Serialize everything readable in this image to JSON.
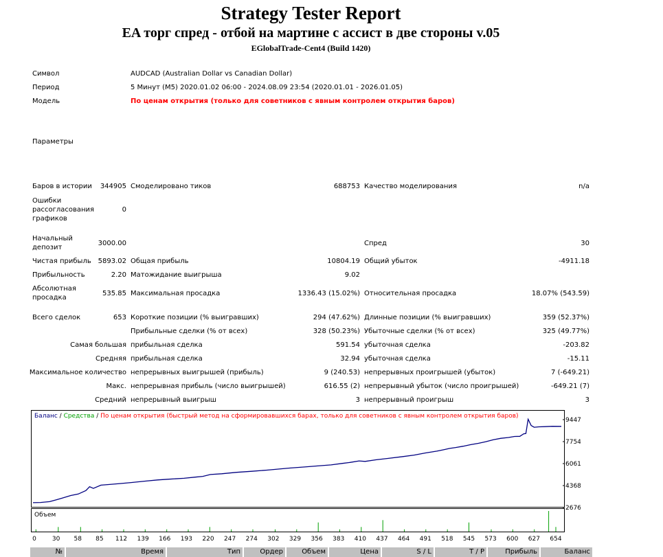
{
  "title": "Strategy Tester Report",
  "subtitle": "EA торг спред - отбой на мартине с ассист в две стороны v.05",
  "server": "EGlobalTrade-Cent4 (Build 1420)",
  "info": {
    "symbol_label": "Символ",
    "symbol_value": "AUDCAD (Australian Dollar vs Canadian Dollar)",
    "period_label": "Период",
    "period_value": "5 Минут (M5) 2020.01.02 06:00 - 2024.08.09 23:54 (2020.01.01 - 2026.01.05)",
    "model_label": "Модель",
    "model_value": "По ценам открытия (только для советников с явным контролем открытия баров)",
    "params_label": "Параметры"
  },
  "stats": {
    "bars_label": "Баров в истории",
    "bars_value": "344905",
    "ticks_label": "Смоделировано тиков",
    "ticks_value": "688753",
    "quality_label": "Качество моделирования",
    "quality_value": "n/a",
    "errors_label": "Ошибки рассогласования графиков",
    "errors_value": "0",
    "deposit_label": "Начальный депозит",
    "deposit_value": "3000.00",
    "spread_label": "Спред",
    "spread_value": "30",
    "net_label": "Чистая прибыль",
    "net_value": "5893.02",
    "gross_profit_label": "Общая прибыль",
    "gross_profit_value": "10804.19",
    "gross_loss_label": "Общий убыток",
    "gross_loss_value": "-4911.18",
    "pf_label": "Прибыльность",
    "pf_value": "2.20",
    "expected_label": "Матожидание выигрыша",
    "expected_value": "9.02",
    "abs_dd_label": "Абсолютная просадка",
    "abs_dd_value": "535.85",
    "max_dd_label": "Максимальная просадка",
    "max_dd_value": "1336.43 (15.02%)",
    "rel_dd_label": "Относительная просадка",
    "rel_dd_value": "18.07% (543.59)",
    "total_label": "Всего сделок",
    "total_value": "653",
    "short_label": "Короткие позиции (% выигравших)",
    "short_value": "294 (47.62%)",
    "long_label": "Длинные позиции (% выигравших)",
    "long_value": "359 (52.37%)",
    "profit_trades_label": "Прибыльные сделки (% от всех)",
    "profit_trades_value": "328 (50.23%)",
    "loss_trades_label": "Убыточные сделки (% от всех)",
    "loss_trades_value": "325 (49.77%)",
    "largest_label": "Самая большая",
    "largest_profit_label": "прибыльная сделка",
    "largest_profit_value": "591.54",
    "largest_loss_label": "убыточная сделка",
    "largest_loss_value": "-203.82",
    "average_label": "Средняя",
    "average_profit_label": "прибыльная сделка",
    "average_profit_value": "32.94",
    "average_loss_label": "убыточная сделка",
    "average_loss_value": "-15.11",
    "max_count_label": "Максимальное количество",
    "max_cons_wins_label": "непрерывных выигрышей (прибыль)",
    "max_cons_wins_value": "9 (240.53)",
    "max_cons_losses_label": "непрерывных проигрышей (убыток)",
    "max_cons_losses_value": "7 (-649.21)",
    "maximal_label": "Макс.",
    "max_cons_profit_label": "непрерывная прибыль (число выигрышей)",
    "max_cons_profit_value": "616.55 (2)",
    "max_cons_loss_label": "непрерывный убыток (число проигрышей)",
    "max_cons_loss_value": "-649.21 (7)",
    "avg_cons_label": "Средний",
    "avg_cons_wins_label": "непрерывный выигрыш",
    "avg_cons_wins_value": "3",
    "avg_cons_losses_label": "непрерывный проигрыш",
    "avg_cons_losses_value": "3"
  },
  "chart_legend": {
    "balance": "Баланс",
    "sep1": " / ",
    "equity": "Средства",
    "sep2": " / ",
    "method": "По ценам открытия (быстрый метод на сформировавшихся барах, только для советников с явным контролем открытия баров)",
    "volume": "Объем"
  },
  "colors": {
    "balance": "#000080",
    "equity": "#00a000",
    "method": "#ff0000",
    "volume": "#00a000"
  },
  "chart_data": {
    "type": "line",
    "series": [
      {
        "name": "Баланс",
        "values": [
          [
            0,
            3050
          ],
          [
            10,
            3070
          ],
          [
            22,
            3130
          ],
          [
            30,
            3260
          ],
          [
            38,
            3390
          ],
          [
            50,
            3600
          ],
          [
            60,
            3720
          ],
          [
            70,
            3980
          ],
          [
            75,
            4280
          ],
          [
            80,
            4150
          ],
          [
            90,
            4400
          ],
          [
            100,
            4450
          ],
          [
            115,
            4520
          ],
          [
            130,
            4600
          ],
          [
            150,
            4720
          ],
          [
            165,
            4800
          ],
          [
            180,
            4860
          ],
          [
            200,
            4930
          ],
          [
            215,
            5020
          ],
          [
            225,
            5080
          ],
          [
            235,
            5220
          ],
          [
            250,
            5280
          ],
          [
            270,
            5390
          ],
          [
            290,
            5470
          ],
          [
            310,
            5560
          ],
          [
            325,
            5640
          ],
          [
            340,
            5720
          ],
          [
            360,
            5800
          ],
          [
            380,
            5900
          ],
          [
            395,
            5960
          ],
          [
            410,
            6080
          ],
          [
            420,
            6150
          ],
          [
            432,
            6270
          ],
          [
            440,
            6230
          ],
          [
            455,
            6360
          ],
          [
            470,
            6460
          ],
          [
            490,
            6600
          ],
          [
            505,
            6720
          ],
          [
            520,
            6880
          ],
          [
            535,
            7020
          ],
          [
            545,
            7140
          ],
          [
            552,
            7230
          ],
          [
            560,
            7300
          ],
          [
            570,
            7400
          ],
          [
            580,
            7520
          ],
          [
            590,
            7620
          ],
          [
            600,
            7750
          ],
          [
            610,
            7900
          ],
          [
            620,
            8010
          ],
          [
            630,
            8070
          ],
          [
            638,
            8150
          ],
          [
            645,
            8160
          ],
          [
            650,
            8350
          ],
          [
            653,
            8380
          ],
          [
            656,
            9480
          ],
          [
            660,
            9000
          ],
          [
            664,
            8860
          ],
          [
            670,
            8890
          ],
          [
            678,
            8910
          ],
          [
            688,
            8935
          ],
          [
            700,
            8930
          ]
        ]
      }
    ],
    "y_ticks": [
      "9447",
      "7754",
      "6061",
      "4368",
      "2676"
    ],
    "y_range": [
      2676,
      9447
    ],
    "x_ticks": [
      "0",
      "30",
      "58",
      "85",
      "112",
      "139",
      "166",
      "193",
      "220",
      "247",
      "274",
      "302",
      "329",
      "356",
      "383",
      "410",
      "437",
      "464",
      "491",
      "518",
      "545",
      "573",
      "600",
      "627",
      "654"
    ],
    "volume_spikes": [
      [
        2,
        1
      ],
      [
        30,
        2
      ],
      [
        58,
        2
      ],
      [
        85,
        1
      ],
      [
        112,
        1
      ],
      [
        139,
        1
      ],
      [
        166,
        1
      ],
      [
        193,
        1
      ],
      [
        220,
        2
      ],
      [
        247,
        1
      ],
      [
        274,
        1
      ],
      [
        302,
        1
      ],
      [
        329,
        1
      ],
      [
        356,
        4
      ],
      [
        383,
        1
      ],
      [
        410,
        2
      ],
      [
        437,
        5
      ],
      [
        464,
        1
      ],
      [
        491,
        1
      ],
      [
        518,
        1
      ],
      [
        545,
        4
      ],
      [
        573,
        1
      ],
      [
        600,
        1
      ],
      [
        627,
        1
      ],
      [
        645,
        9
      ],
      [
        654,
        2
      ]
    ]
  },
  "table_headers": [
    "№",
    "Время",
    "Тип",
    "Ордер",
    "Объем",
    "Цена",
    "S / L",
    "T / P",
    "Прибыль",
    "Баланс"
  ]
}
